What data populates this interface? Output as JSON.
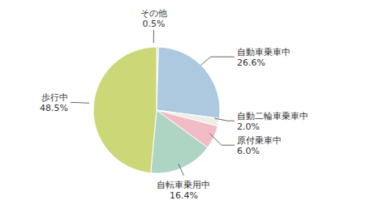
{
  "chart_data": {
    "type": "pie",
    "categories": [
      "その他",
      "自動車乗車中",
      "自動二輪車乗車中",
      "原付乗車中",
      "自転車乗用中",
      "歩行中"
    ],
    "values": [
      0.5,
      26.6,
      2.0,
      6.0,
      16.4,
      48.5
    ],
    "value_labels": [
      "0.5%",
      "26.6%",
      "2.0%",
      "6.0%",
      "16.4%",
      "48.5%"
    ],
    "colors": [
      "#dddbd2",
      "#adc9e0",
      "#eeeee6",
      "#f2bcc6",
      "#aed4c3",
      "#ccd878"
    ]
  }
}
